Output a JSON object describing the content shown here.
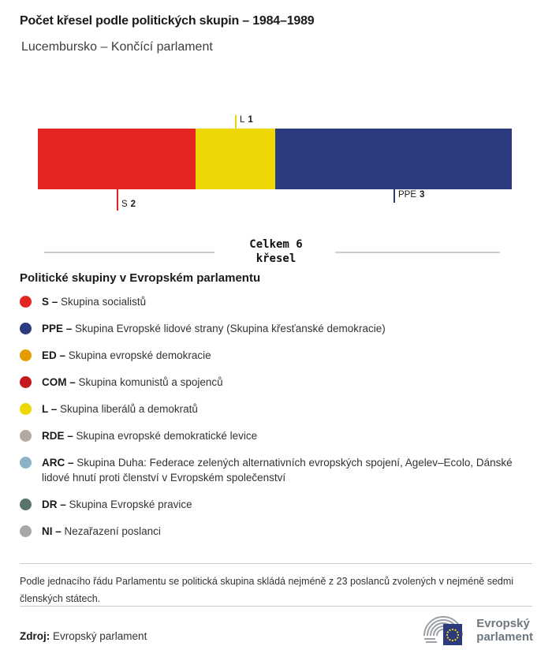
{
  "header": {
    "title": "Počet křesel podle politických skupin – 1984–1989",
    "subtitle": "Lucembursko – Končící parlament"
  },
  "chart_data": {
    "type": "bar",
    "variant": "horizontal-stacked-seat-composition",
    "total": 6,
    "total_line1": "Celkem 6",
    "total_line2": "křesel",
    "series": [
      {
        "name": "S",
        "value": 2,
        "color": "#e42522",
        "label_side": "below"
      },
      {
        "name": "L",
        "value": 1,
        "color": "#edd805",
        "label_side": "above"
      },
      {
        "name": "PPE",
        "value": 3,
        "color": "#2b3b7e",
        "label_side": "below"
      }
    ]
  },
  "legend": {
    "heading": "Politické skupiny v Evropském parlamentu",
    "items": [
      {
        "abbr": "S –",
        "name": "Skupina socialistů",
        "color": "#e42522"
      },
      {
        "abbr": "PPE –",
        "name": "Skupina Evropské lidové strany (Skupina křesťanské demokracie)",
        "color": "#2b3b7e"
      },
      {
        "abbr": "ED –",
        "name": "Skupina evropské demokracie",
        "color": "#e69b00"
      },
      {
        "abbr": "COM –",
        "name": "Skupina komunistů a spojenců",
        "color": "#c6191e"
      },
      {
        "abbr": "L –",
        "name": "Skupina liberálů a demokratů",
        "color": "#edd805"
      },
      {
        "abbr": "RDE –",
        "name": "Skupina evropské demokratické levice",
        "color": "#b2aa9e"
      },
      {
        "abbr": "ARC –",
        "name": "Skupina Duha: Federace zelených alternativních evropských spojení, Agelev–Ecolo, Dánské lidové hnutí proti členství v Evropském společenství",
        "color": "#8cb2c7"
      },
      {
        "abbr": "DR –",
        "name": "Skupina Evropské pravice",
        "color": "#5a7468"
      },
      {
        "abbr": "NI –",
        "name": "Nezařazení poslanci",
        "color": "#a8a8a8"
      }
    ]
  },
  "footnote": "Podle jednacího řádu Parlamentu se politická skupina skládá nejméně z 23 poslanců zvolených v nejméně sedmi členských státech.",
  "source": {
    "label": "Zdroj:",
    "value": "Evropský parlament"
  },
  "logo": {
    "line1": "Evropský",
    "line2": "parlament"
  }
}
